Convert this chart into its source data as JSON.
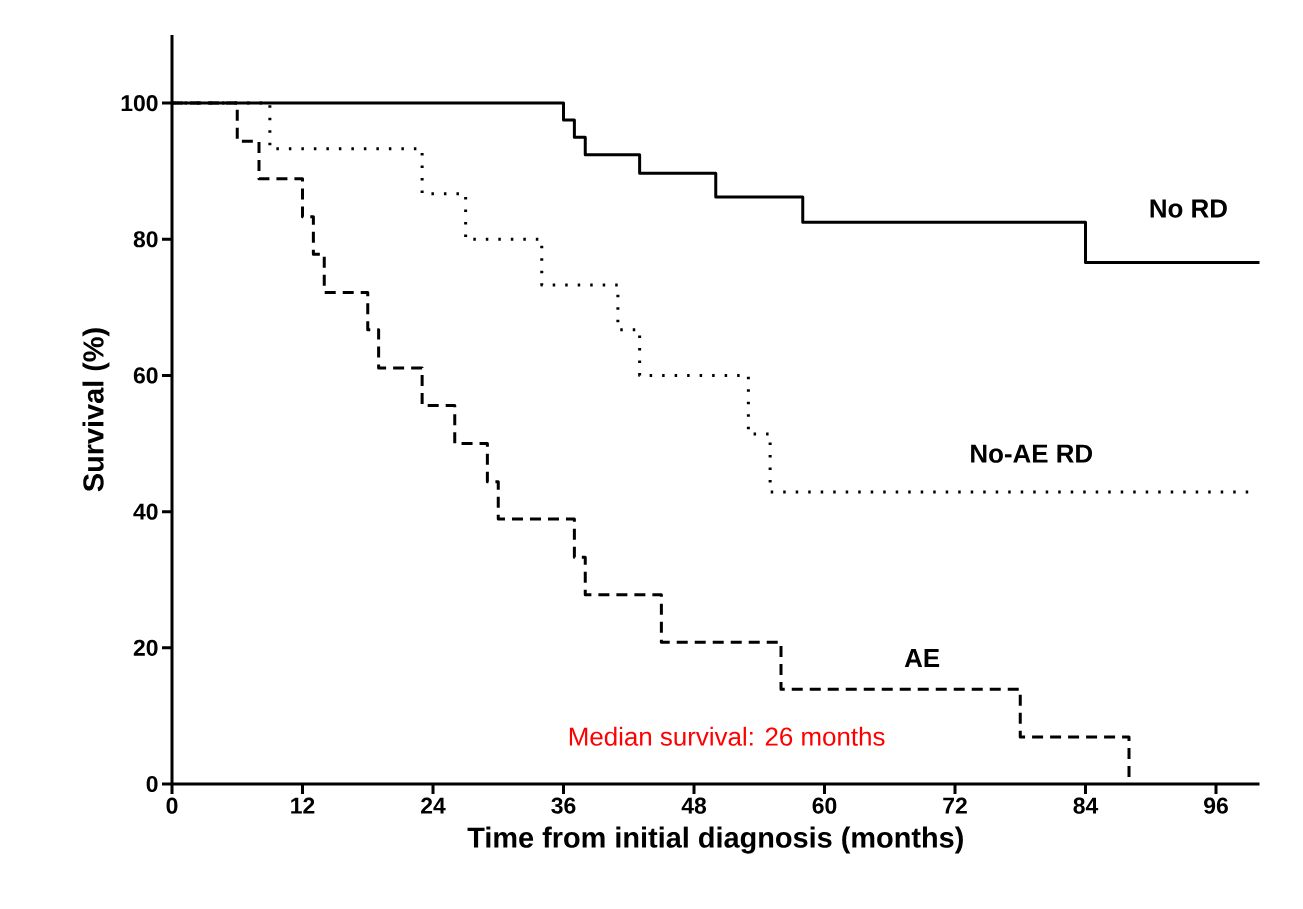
{
  "chart_data": {
    "type": "step",
    "xlabel": "Time from initial diagnosis (months)",
    "ylabel": "Survival (%)",
    "xlim": [
      0,
      100
    ],
    "ylim": [
      0,
      110
    ],
    "xticks": [
      0,
      12,
      24,
      36,
      48,
      60,
      72,
      84,
      96
    ],
    "yticks": [
      0,
      20,
      40,
      60,
      80,
      100
    ],
    "marker": "none",
    "series": [
      {
        "name": "No RD",
        "color": "#000000",
        "line_style": "solid",
        "x": [
          0,
          36,
          37,
          38,
          43,
          50,
          58,
          84,
          100
        ],
        "values": [
          100,
          97.5,
          95.0,
          92.4,
          89.7,
          86.2,
          82.5,
          76.6,
          76.6
        ]
      },
      {
        "name": "No-AE RD",
        "color": "#000000",
        "line_style": "dotted",
        "x": [
          0,
          9,
          23,
          27,
          34,
          41,
          43,
          53,
          55,
          99
        ],
        "values": [
          100,
          93.3,
          86.7,
          80.0,
          73.3,
          66.7,
          60.0,
          51.4,
          42.9,
          42.9
        ]
      },
      {
        "name": "AE",
        "color": "#000000",
        "line_style": "dashed",
        "x": [
          0,
          6,
          8,
          12,
          13,
          14,
          18,
          19,
          23,
          26,
          29,
          30,
          37,
          38,
          45,
          56,
          78,
          88
        ],
        "values": [
          100,
          94.4,
          88.9,
          83.3,
          77.8,
          72.2,
          66.7,
          61.1,
          55.6,
          50.0,
          44.4,
          38.9,
          33.3,
          27.8,
          20.8,
          13.9,
          6.9,
          0
        ]
      }
    ],
    "annotations": [
      "Median survival: 26 months"
    ]
  }
}
